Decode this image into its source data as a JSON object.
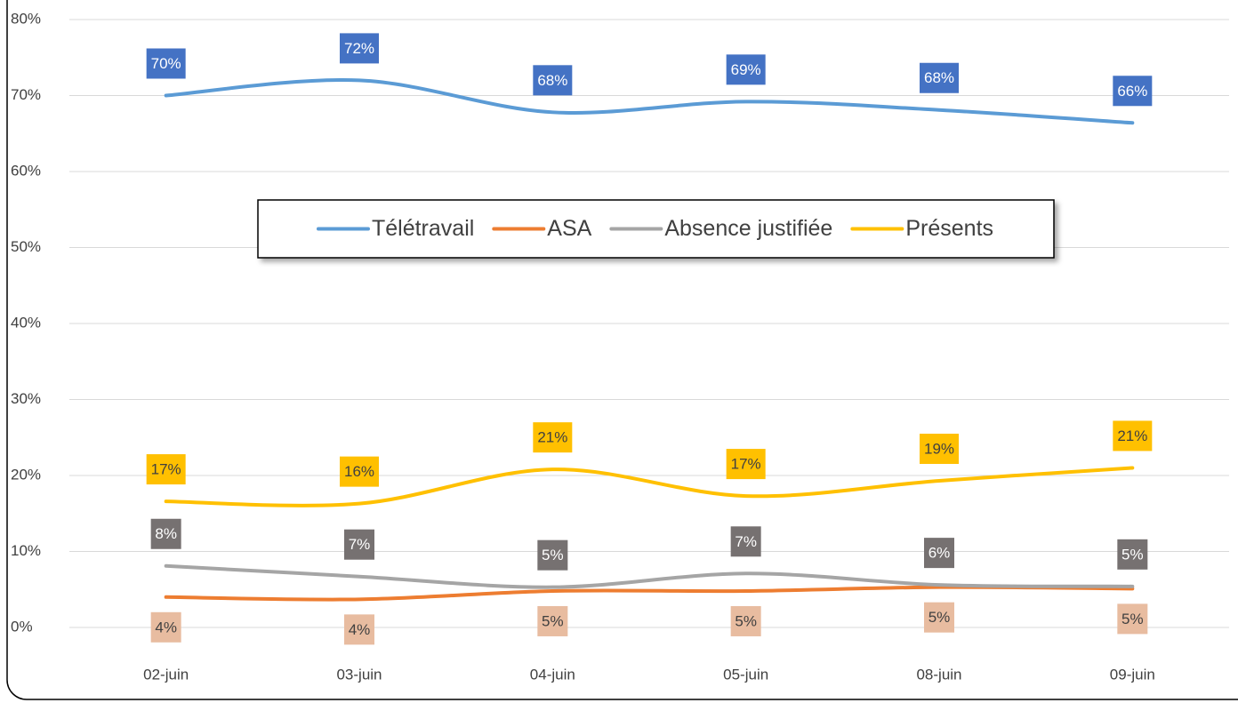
{
  "chart_data": {
    "type": "line",
    "categories": [
      "02-juin",
      "03-juin",
      "04-juin",
      "05-juin",
      "08-juin",
      "09-juin"
    ],
    "series": [
      {
        "name": "Télétravail",
        "color": "#5b9bd5",
        "label_color": "#4472c4",
        "label_text_color": "#ffffff",
        "label_position": "above",
        "values": [
          70,
          72,
          67.8,
          69.2,
          68.1,
          66.4
        ],
        "value_labels": [
          "70%",
          "72%",
          "68%",
          "69%",
          "68%",
          "66%"
        ]
      },
      {
        "name": "ASA",
        "color": "#ed7d31",
        "label_color": "#e8bca0",
        "label_text_color": "#404040",
        "label_position": "below",
        "values": [
          4,
          3.7,
          4.8,
          4.8,
          5.3,
          5.1
        ],
        "value_labels": [
          "4%",
          "4%",
          "5%",
          "5%",
          "5%",
          "5%"
        ]
      },
      {
        "name": "Absence justifiée",
        "color": "#a5a5a5",
        "label_color": "#767171",
        "label_text_color": "#ffffff",
        "label_position": "above",
        "values": [
          8.1,
          6.7,
          5.3,
          7.1,
          5.6,
          5.4
        ],
        "value_labels": [
          "8%",
          "7%",
          "5%",
          "7%",
          "6%",
          "5%"
        ]
      },
      {
        "name": "Présents",
        "color": "#ffc000",
        "label_color": "#ffc000",
        "label_text_color": "#404040",
        "label_position": "above",
        "values": [
          16.6,
          16.3,
          20.8,
          17.3,
          19.3,
          21.0
        ],
        "value_labels": [
          "17%",
          "16%",
          "21%",
          "17%",
          "19%",
          "21%"
        ]
      }
    ],
    "ylim": [
      0,
      80
    ],
    "yticks": [
      {
        "value": 0,
        "label": "0%"
      },
      {
        "value": 10,
        "label": "10%"
      },
      {
        "value": 20,
        "label": "20%"
      },
      {
        "value": 30,
        "label": "30%"
      },
      {
        "value": 40,
        "label": "40%"
      },
      {
        "value": 50,
        "label": "50%"
      },
      {
        "value": 60,
        "label": "60%"
      },
      {
        "value": 70,
        "label": "70%"
      },
      {
        "value": 80,
        "label": "80%"
      }
    ],
    "grid": true,
    "legend": "center"
  }
}
